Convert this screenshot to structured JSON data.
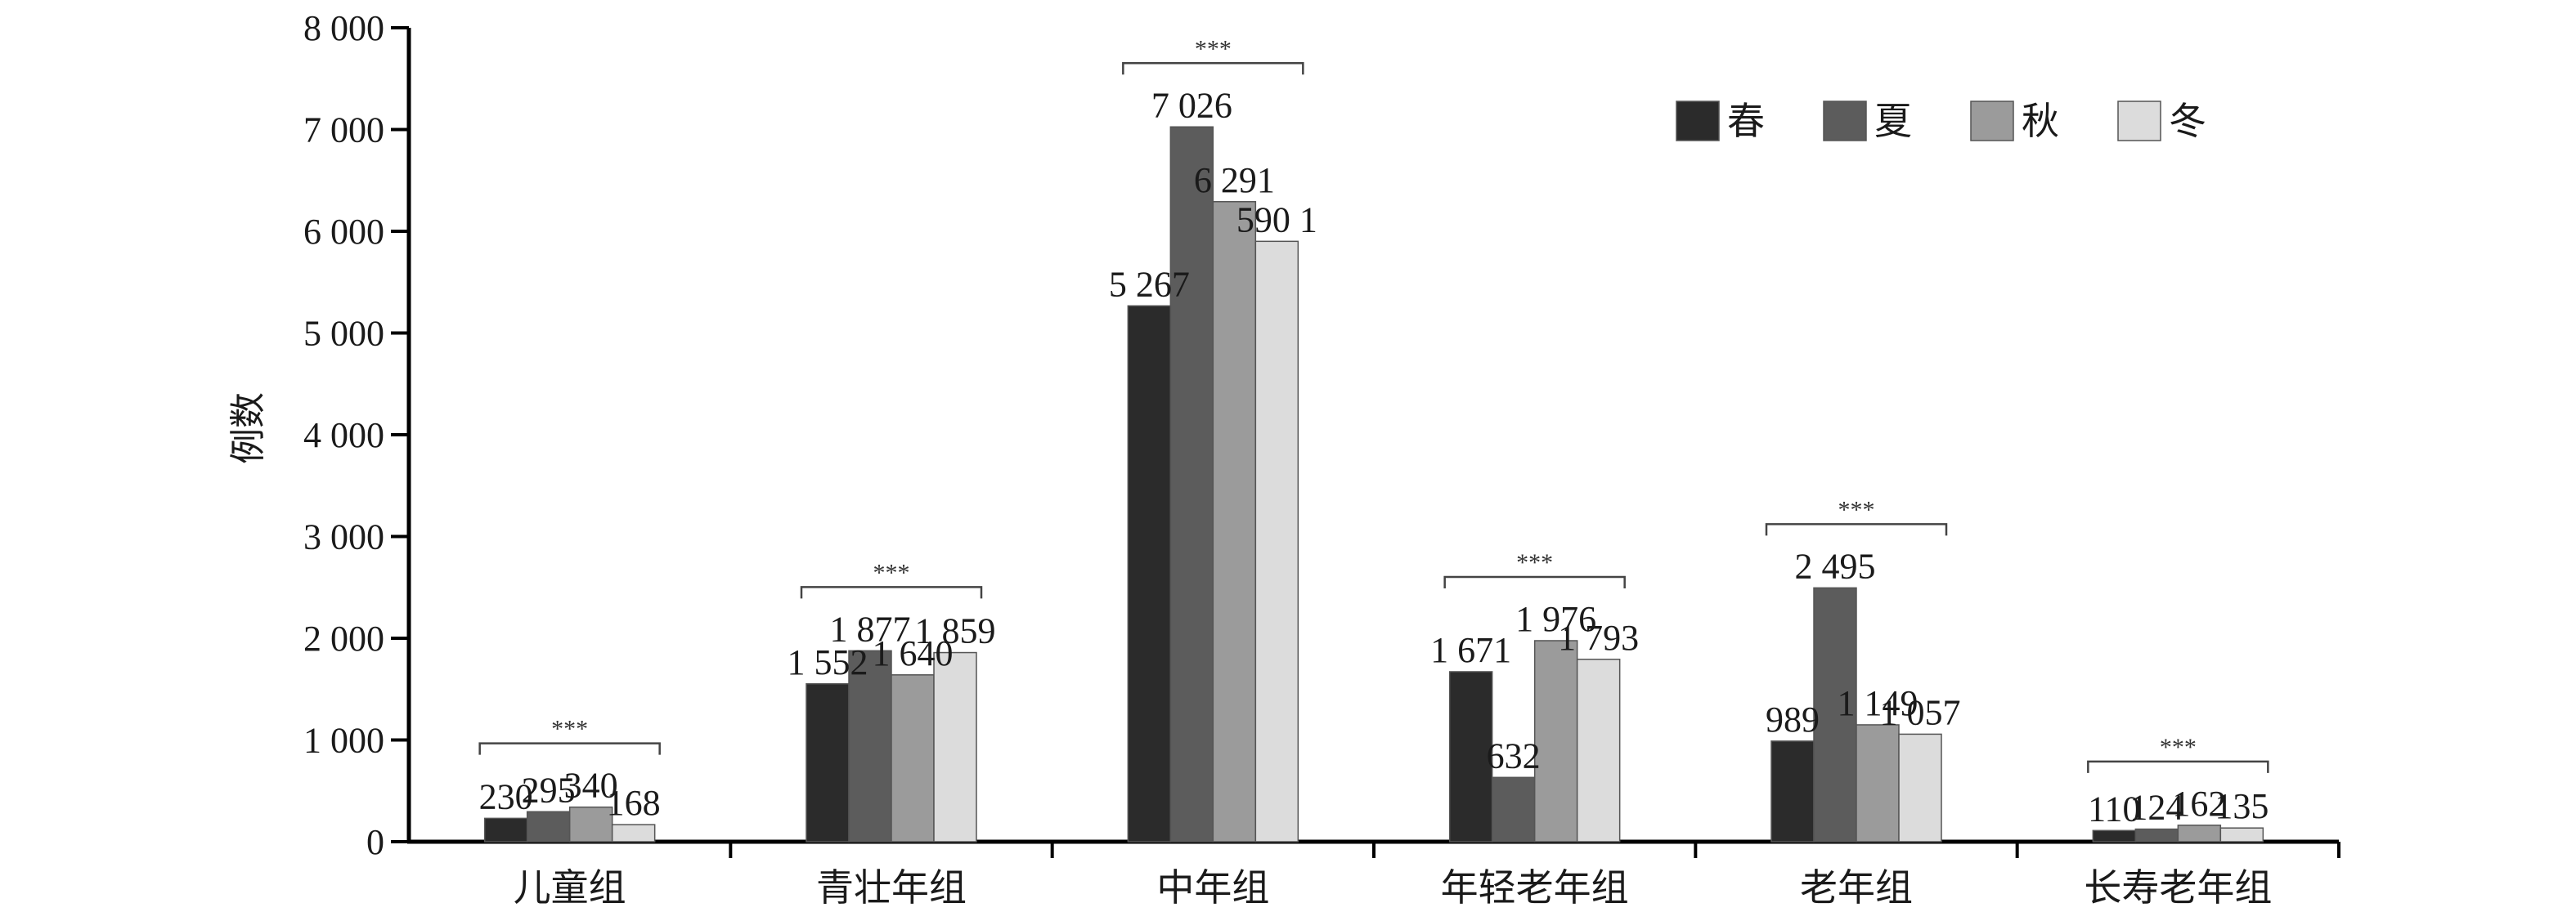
{
  "chart_data": {
    "type": "bar",
    "ylabel": "例数",
    "ylim": [
      0,
      8000
    ],
    "yticks": [
      0,
      1000,
      2000,
      3000,
      4000,
      5000,
      6000,
      7000,
      8000
    ],
    "ytick_labels": [
      "0",
      "1 000",
      "2 000",
      "3 000",
      "4 000",
      "5 000",
      "6 000",
      "7 000",
      "8 000"
    ],
    "categories": [
      "儿童组",
      "青壮年组",
      "中年组",
      "年轻老年组",
      "老年组",
      "长寿老年组"
    ],
    "series": [
      {
        "name": "春",
        "color": "#2b2b2b",
        "values": [
          230,
          1552,
          5267,
          1671,
          989,
          110
        ]
      },
      {
        "name": "夏",
        "color": "#5c5c5c",
        "values": [
          295,
          1877,
          7026,
          632,
          2495,
          124
        ]
      },
      {
        "name": "秋",
        "color": "#9b9b9b",
        "values": [
          340,
          1640,
          6291,
          1976,
          1149,
          162
        ]
      },
      {
        "name": "冬",
        "color": "#dcdcdc",
        "values": [
          168,
          1859,
          5901,
          1793,
          1057,
          135
        ]
      }
    ],
    "data_labels": [
      [
        "230",
        "295",
        "340",
        "168"
      ],
      [
        "1 552",
        "1 877",
        "1 640",
        "1 859"
      ],
      [
        "5 267",
        "7 026",
        "6 291",
        "590 1"
      ],
      [
        "1 671",
        "632",
        "1 976",
        "1 793"
      ],
      [
        "989",
        "2 495",
        "1 149",
        "1 057"
      ],
      [
        "110",
        "124",
        "162",
        "135"
      ]
    ],
    "significance": [
      "***",
      "***",
      "***",
      "***",
      "***",
      "***"
    ],
    "legend_position": "top-right",
    "grid": false
  }
}
